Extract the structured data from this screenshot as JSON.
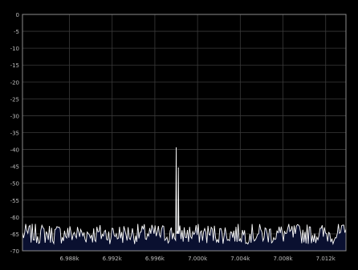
{
  "chart_data": {
    "type": "line",
    "title": "",
    "xlabel": "",
    "ylabel": "",
    "xlim": [
      6.9836,
      7.0139
    ],
    "ylim": [
      -70,
      0
    ],
    "x_tick_labels": [
      "6.988k",
      "6.992k",
      "6.996k",
      "7.000k",
      "7.004k",
      "7.008k",
      "7.012k"
    ],
    "x_tick_values": [
      6.988,
      6.992,
      6.996,
      7.0,
      7.004,
      7.008,
      7.012
    ],
    "y_tick_labels": [
      "0",
      "-5",
      "-10",
      "-15",
      "-20",
      "-25",
      "-30",
      "-35",
      "-40",
      "-45",
      "-50",
      "-55",
      "-60",
      "-65",
      "-70"
    ],
    "y_tick_values": [
      0,
      -5,
      -10,
      -15,
      -20,
      -25,
      -30,
      -35,
      -40,
      -45,
      -50,
      -55,
      -60,
      -65,
      -70
    ],
    "grid": true,
    "noise_floor": {
      "min": -68,
      "max": -62,
      "typical": -65
    },
    "series": [
      {
        "color": "#ffffff",
        "fill": "#0a1030",
        "points": [
          {
            "x": 6.9836,
            "y": -66
          },
          {
            "x": 6.9845,
            "y": -64
          },
          {
            "x": 6.9855,
            "y": -65
          },
          {
            "x": 6.9865,
            "y": -66
          },
          {
            "x": 6.9875,
            "y": -64
          },
          {
            "x": 6.9885,
            "y": -65
          },
          {
            "x": 6.9895,
            "y": -63
          },
          {
            "x": 6.9905,
            "y": -66
          },
          {
            "x": 6.9915,
            "y": -64
          },
          {
            "x": 6.9925,
            "y": -65
          },
          {
            "x": 6.9935,
            "y": -63
          },
          {
            "x": 6.9945,
            "y": -66
          },
          {
            "x": 6.9955,
            "y": -65
          },
          {
            "x": 6.9965,
            "y": -64
          },
          {
            "x": 6.9975,
            "y": -65
          },
          {
            "x": 6.9978,
            "y": -62
          },
          {
            "x": 6.998,
            "y": -39.5
          },
          {
            "x": 6.9981,
            "y": -64
          },
          {
            "x": 6.9982,
            "y": -45.5
          },
          {
            "x": 6.9984,
            "y": -65
          },
          {
            "x": 6.9995,
            "y": -64
          },
          {
            "x": 7.0005,
            "y": -63
          },
          {
            "x": 7.0015,
            "y": -66
          },
          {
            "x": 7.0025,
            "y": -64
          },
          {
            "x": 7.0035,
            "y": -65
          },
          {
            "x": 7.0045,
            "y": -63
          },
          {
            "x": 7.0055,
            "y": -66
          },
          {
            "x": 7.0065,
            "y": -64
          },
          {
            "x": 7.0075,
            "y": -65
          },
          {
            "x": 7.0085,
            "y": -63
          },
          {
            "x": 7.0095,
            "y": -65
          },
          {
            "x": 7.0105,
            "y": -64
          },
          {
            "x": 7.0115,
            "y": -66
          },
          {
            "x": 7.0125,
            "y": -65
          },
          {
            "x": 7.0135,
            "y": -64
          },
          {
            "x": 7.0139,
            "y": -68
          }
        ]
      }
    ],
    "peak": {
      "x": 6.998,
      "y": -39.5
    },
    "secondary_peak": {
      "x": 6.9982,
      "y": -45.5
    }
  }
}
